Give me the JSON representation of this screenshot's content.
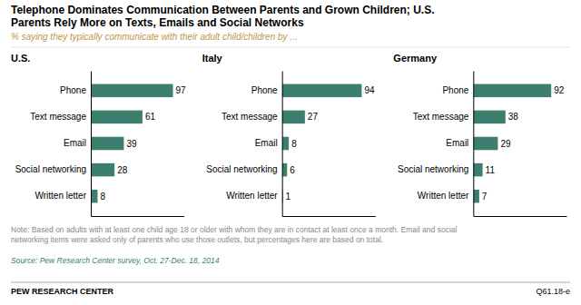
{
  "title": [
    "Telephone Dominates Communication Between Parents and Grown Children; U.S.",
    "Parents Rely More on Texts, Emails and Social Networks"
  ],
  "subtitle": "% saying they typically communicate with their adult child/children by ...",
  "annotations": [
    "Note: Based on adults with at least one child age 18 or older with whom they are in contact at least once a month. Email and social",
    "networking items were asked only of parents who use those outlets, but percentages here are based on total.",
    "Source: Pew Research Center survey, Oct. 27-Dec. 18, 2014",
    "PEW RESEARCH CENTER",
    "Q61.18-e"
  ],
  "chart_data": [
    {
      "type": "bar",
      "title": "U.S.",
      "orientation": "horizontal",
      "categories": [
        "Phone",
        "Text message",
        "Email",
        "Social networking",
        "Written letter"
      ],
      "values": [
        97,
        61,
        39,
        28,
        8
      ],
      "color": "#3d7f6e",
      "xlim": [
        0,
        110
      ],
      "xticks": [],
      "tick_labels": "y",
      "data_labels": true
    },
    {
      "type": "bar",
      "title": "Italy",
      "orientation": "horizontal",
      "categories": [
        "Phone",
        "Text message",
        "Email",
        "Social networking",
        "Written letter"
      ],
      "values": [
        94,
        27,
        8,
        6,
        1
      ],
      "color": "#3d7f6e",
      "xlim": [
        0,
        110
      ],
      "xticks": [],
      "tick_labels": "y",
      "data_labels": true
    },
    {
      "type": "bar",
      "title": "Germany",
      "orientation": "horizontal",
      "categories": [
        "Phone",
        "Text message",
        "Email",
        "Social networking",
        "Written letter"
      ],
      "values": [
        92,
        38,
        29,
        11,
        7
      ],
      "color": "#3d7f6e",
      "xlim": [
        0,
        110
      ],
      "xticks": [],
      "tick_labels": "y",
      "data_labels": true
    }
  ]
}
